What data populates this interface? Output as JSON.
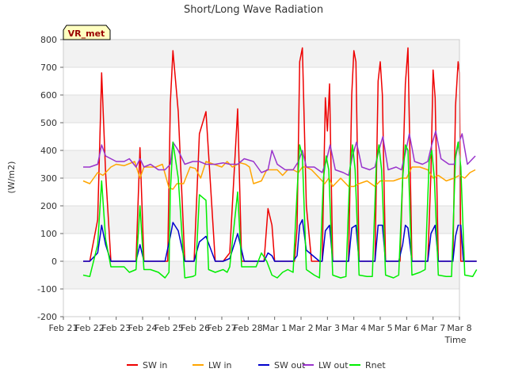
{
  "chart_data": {
    "type": "line",
    "title": "Short/Long Wave Radiation",
    "xlabel": "Time",
    "ylabel": "(W/m2)",
    "ylim": [
      -200,
      800
    ],
    "yticks": [
      -200,
      -100,
      0,
      100,
      200,
      300,
      400,
      500,
      600,
      700,
      800
    ],
    "xlim": [
      0,
      15
    ],
    "xtick_labels": [
      "Feb 21",
      "Feb 22",
      "Feb 23",
      "Feb 24",
      "Feb 25",
      "Feb 26",
      "Feb 27",
      "Feb 28",
      "Mar 1",
      "Mar 2",
      "Mar 3",
      "Mar 4",
      "Mar 5",
      "Mar 6",
      "Mar 7",
      "Mar 8"
    ],
    "station_label": "VR_met",
    "grid": true,
    "legend_position": "bottom",
    "series": [
      {
        "name": "SW in",
        "color": "#ee0000",
        "x": [
          0.75,
          1.0,
          1.3,
          1.45,
          1.6,
          1.8,
          2.0,
          2.5,
          2.75,
          2.9,
          3.05,
          3.25,
          3.45,
          3.75,
          3.85,
          3.95,
          4.05,
          4.15,
          4.35,
          4.6,
          4.8,
          4.95,
          5.15,
          5.4,
          5.75,
          5.9,
          6.05,
          6.3,
          6.6,
          6.75,
          6.85,
          7.0,
          7.35,
          7.6,
          7.75,
          7.9,
          8.0,
          8.2,
          8.4,
          8.7,
          8.75,
          8.85,
          8.95,
          9.05,
          9.2,
          9.4,
          9.7,
          9.8,
          9.92,
          10.0,
          10.08,
          10.2,
          10.4,
          10.7,
          10.8,
          10.92,
          11.0,
          11.08,
          11.2,
          11.4,
          11.7,
          11.8,
          11.92,
          12.0,
          12.08,
          12.2,
          12.4,
          12.7,
          12.75,
          12.85,
          12.95,
          13.05,
          13.2,
          13.4,
          13.7,
          13.8,
          13.92,
          14.0,
          14.08,
          14.2,
          14.4,
          14.65,
          14.75,
          14.85,
          14.95,
          15.0,
          15.05,
          15.15,
          15.35,
          15.65
        ],
        "y": [
          0,
          0,
          150,
          680,
          320,
          0,
          0,
          0,
          0,
          410,
          0,
          0,
          0,
          0,
          0,
          0,
          570,
          760,
          540,
          0,
          0,
          0,
          460,
          540,
          0,
          0,
          0,
          30,
          550,
          0,
          0,
          0,
          0,
          0,
          190,
          130,
          0,
          0,
          0,
          0,
          0,
          120,
          720,
          770,
          200,
          0,
          0,
          0,
          590,
          470,
          640,
          0,
          0,
          0,
          0,
          600,
          760,
          720,
          0,
          0,
          0,
          0,
          650,
          720,
          600,
          0,
          0,
          0,
          0,
          300,
          640,
          770,
          0,
          0,
          0,
          0,
          320,
          690,
          590,
          0,
          0,
          0,
          0,
          560,
          720,
          680,
          0,
          0,
          0,
          0
        ]
      },
      {
        "name": "LW in",
        "color": "#ffa500",
        "x": [
          0.75,
          1.0,
          1.3,
          1.5,
          1.8,
          2.0,
          2.3,
          2.7,
          2.9,
          3.05,
          3.3,
          3.5,
          3.75,
          4.0,
          4.15,
          4.3,
          4.55,
          4.8,
          5.0,
          5.2,
          5.4,
          5.7,
          6.0,
          6.2,
          6.4,
          6.7,
          6.9,
          7.05,
          7.2,
          7.5,
          7.7,
          7.9,
          8.1,
          8.3,
          8.5,
          8.7,
          8.9,
          9.05,
          9.2,
          9.4,
          9.7,
          9.9,
          10.05,
          10.2,
          10.5,
          10.8,
          11.0,
          11.2,
          11.5,
          11.8,
          12.0,
          12.2,
          12.5,
          12.8,
          13.0,
          13.2,
          13.5,
          13.8,
          14.0,
          14.2,
          14.5,
          14.8,
          15.0,
          15.2,
          15.4,
          15.6
        ],
        "y": [
          290,
          280,
          320,
          310,
          340,
          350,
          345,
          360,
          300,
          340,
          340,
          340,
          350,
          265,
          260,
          280,
          280,
          340,
          335,
          300,
          360,
          350,
          340,
          360,
          340,
          355,
          350,
          340,
          280,
          290,
          330,
          330,
          330,
          310,
          330,
          330,
          320,
          340,
          340,
          330,
          300,
          280,
          300,
          270,
          300,
          270,
          270,
          280,
          290,
          270,
          290,
          290,
          290,
          300,
          300,
          340,
          340,
          330,
          300,
          310,
          290,
          300,
          310,
          300,
          320,
          330
        ]
      },
      {
        "name": "SW out",
        "color": "#0000cc",
        "x": [
          0.75,
          1.0,
          1.3,
          1.45,
          1.6,
          1.8,
          2.0,
          2.75,
          2.9,
          3.05,
          3.45,
          3.85,
          4.05,
          4.15,
          4.35,
          4.6,
          4.95,
          5.15,
          5.4,
          5.75,
          6.05,
          6.3,
          6.6,
          6.85,
          7.35,
          7.6,
          7.75,
          7.9,
          8.0,
          8.2,
          8.7,
          8.85,
          8.95,
          9.05,
          9.2,
          9.7,
          9.8,
          9.92,
          10.08,
          10.2,
          10.7,
          10.8,
          10.92,
          11.08,
          11.2,
          11.7,
          11.8,
          11.92,
          12.08,
          12.2,
          12.7,
          12.85,
          12.95,
          13.05,
          13.2,
          13.7,
          13.8,
          13.92,
          14.08,
          14.2,
          14.65,
          14.75,
          14.85,
          14.95,
          15.05,
          15.15,
          15.65
        ],
        "y": [
          0,
          0,
          30,
          130,
          60,
          0,
          0,
          0,
          60,
          0,
          0,
          0,
          90,
          140,
          110,
          0,
          0,
          70,
          90,
          0,
          0,
          10,
          100,
          0,
          0,
          0,
          30,
          20,
          0,
          0,
          0,
          20,
          130,
          150,
          40,
          0,
          0,
          110,
          130,
          0,
          0,
          0,
          120,
          130,
          0,
          0,
          0,
          130,
          130,
          0,
          0,
          60,
          130,
          120,
          0,
          0,
          0,
          100,
          130,
          0,
          0,
          0,
          90,
          130,
          130,
          0,
          0
        ]
      },
      {
        "name": "LW out",
        "color": "#9933cc",
        "x": [
          0.75,
          1.0,
          1.3,
          1.45,
          1.6,
          1.8,
          2.0,
          2.3,
          2.5,
          2.75,
          2.9,
          3.05,
          3.3,
          3.6,
          3.85,
          4.05,
          4.15,
          4.35,
          4.6,
          4.9,
          5.15,
          5.4,
          5.75,
          6.05,
          6.3,
          6.6,
          6.85,
          7.2,
          7.5,
          7.75,
          7.9,
          8.1,
          8.4,
          8.7,
          8.9,
          9.05,
          9.2,
          9.5,
          9.8,
          9.95,
          10.1,
          10.3,
          10.6,
          10.8,
          10.95,
          11.1,
          11.3,
          11.6,
          11.8,
          11.95,
          12.1,
          12.3,
          12.6,
          12.8,
          12.95,
          13.1,
          13.3,
          13.6,
          13.8,
          13.95,
          14.1,
          14.3,
          14.6,
          14.8,
          14.95,
          15.1,
          15.3,
          15.6
        ],
        "y": [
          340,
          340,
          350,
          420,
          380,
          370,
          360,
          360,
          370,
          340,
          370,
          340,
          350,
          330,
          330,
          350,
          430,
          400,
          350,
          360,
          360,
          350,
          350,
          355,
          350,
          350,
          370,
          360,
          320,
          330,
          400,
          350,
          330,
          330,
          360,
          400,
          340,
          340,
          320,
          360,
          420,
          330,
          320,
          310,
          380,
          430,
          340,
          330,
          340,
          400,
          450,
          330,
          340,
          330,
          390,
          460,
          360,
          350,
          360,
          420,
          470,
          370,
          350,
          350,
          420,
          460,
          350,
          380
        ]
      },
      {
        "name": "Rnet",
        "color": "#00ee00",
        "x": [
          0.75,
          1.0,
          1.3,
          1.45,
          1.6,
          1.8,
          2.0,
          2.3,
          2.5,
          2.75,
          2.9,
          3.05,
          3.3,
          3.6,
          3.85,
          4.0,
          4.05,
          4.15,
          4.35,
          4.6,
          4.9,
          5.0,
          5.15,
          5.4,
          5.5,
          5.75,
          6.05,
          6.2,
          6.3,
          6.6,
          6.75,
          6.9,
          7.1,
          7.3,
          7.5,
          7.7,
          7.9,
          8.1,
          8.3,
          8.5,
          8.7,
          8.85,
          8.95,
          9.05,
          9.2,
          9.5,
          9.7,
          9.85,
          9.95,
          10.05,
          10.2,
          10.5,
          10.7,
          10.85,
          10.95,
          11.05,
          11.2,
          11.5,
          11.7,
          11.85,
          11.95,
          12.05,
          12.2,
          12.5,
          12.7,
          12.85,
          12.95,
          13.05,
          13.2,
          13.5,
          13.7,
          13.85,
          13.95,
          14.05,
          14.2,
          14.5,
          14.7,
          14.85,
          14.95,
          15.05,
          15.2,
          15.5,
          15.65
        ],
        "y": [
          -50,
          -55,
          60,
          290,
          80,
          -20,
          -20,
          -20,
          -40,
          -30,
          200,
          -30,
          -30,
          -40,
          -60,
          -40,
          250,
          430,
          300,
          -60,
          -55,
          -50,
          240,
          220,
          -30,
          -40,
          -30,
          -40,
          -20,
          250,
          -20,
          -20,
          -20,
          -20,
          30,
          0,
          -50,
          -60,
          -40,
          -30,
          -40,
          250,
          420,
          380,
          -30,
          -50,
          -60,
          300,
          380,
          330,
          -50,
          -60,
          -55,
          330,
          420,
          330,
          -50,
          -55,
          -55,
          350,
          420,
          330,
          -50,
          -60,
          -50,
          300,
          420,
          400,
          -50,
          -40,
          -30,
          360,
          400,
          300,
          -50,
          -55,
          -55,
          380,
          430,
          340,
          -50,
          -55,
          -30
        ]
      }
    ]
  }
}
